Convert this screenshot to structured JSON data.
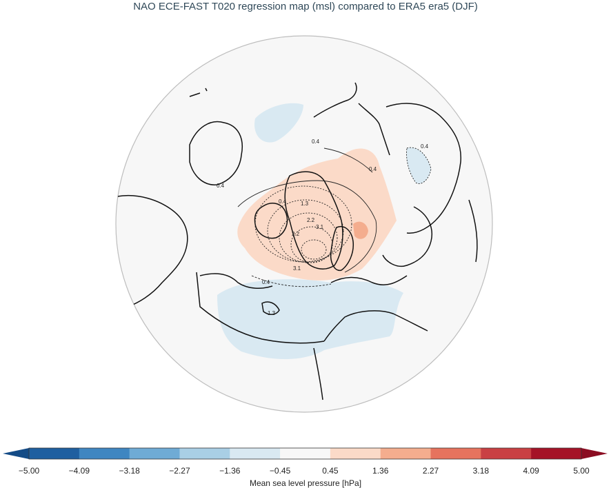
{
  "title": "NAO ECE-FAST T020 regression map (msl) compared to ERA5 era5 (DJF)",
  "colorbar": {
    "label": "Mean sea level pressure [hPa]",
    "ticks": [
      "−5.00",
      "−4.09",
      "−3.18",
      "−2.27",
      "−1.36",
      "−0.45",
      "0.45",
      "1.36",
      "2.27",
      "3.18",
      "4.09",
      "5.00"
    ],
    "colors": [
      "#1f5fa0",
      "#3f86c1",
      "#6fabd5",
      "#a9cfe5",
      "#d9e9f2",
      "#f7f7f7",
      "#fbdac8",
      "#f4ad8e",
      "#e6735e",
      "#c94043",
      "#a51327"
    ],
    "under_color": "#134b86",
    "over_color": "#8b0d22"
  },
  "contour_labels": [
    "0.4",
    "0.4",
    "0.4",
    "0.4",
    "0.4",
    "1.3",
    "2.2",
    "2.2",
    "3.1",
    "3.1",
    "1.3",
    "0.4"
  ]
}
